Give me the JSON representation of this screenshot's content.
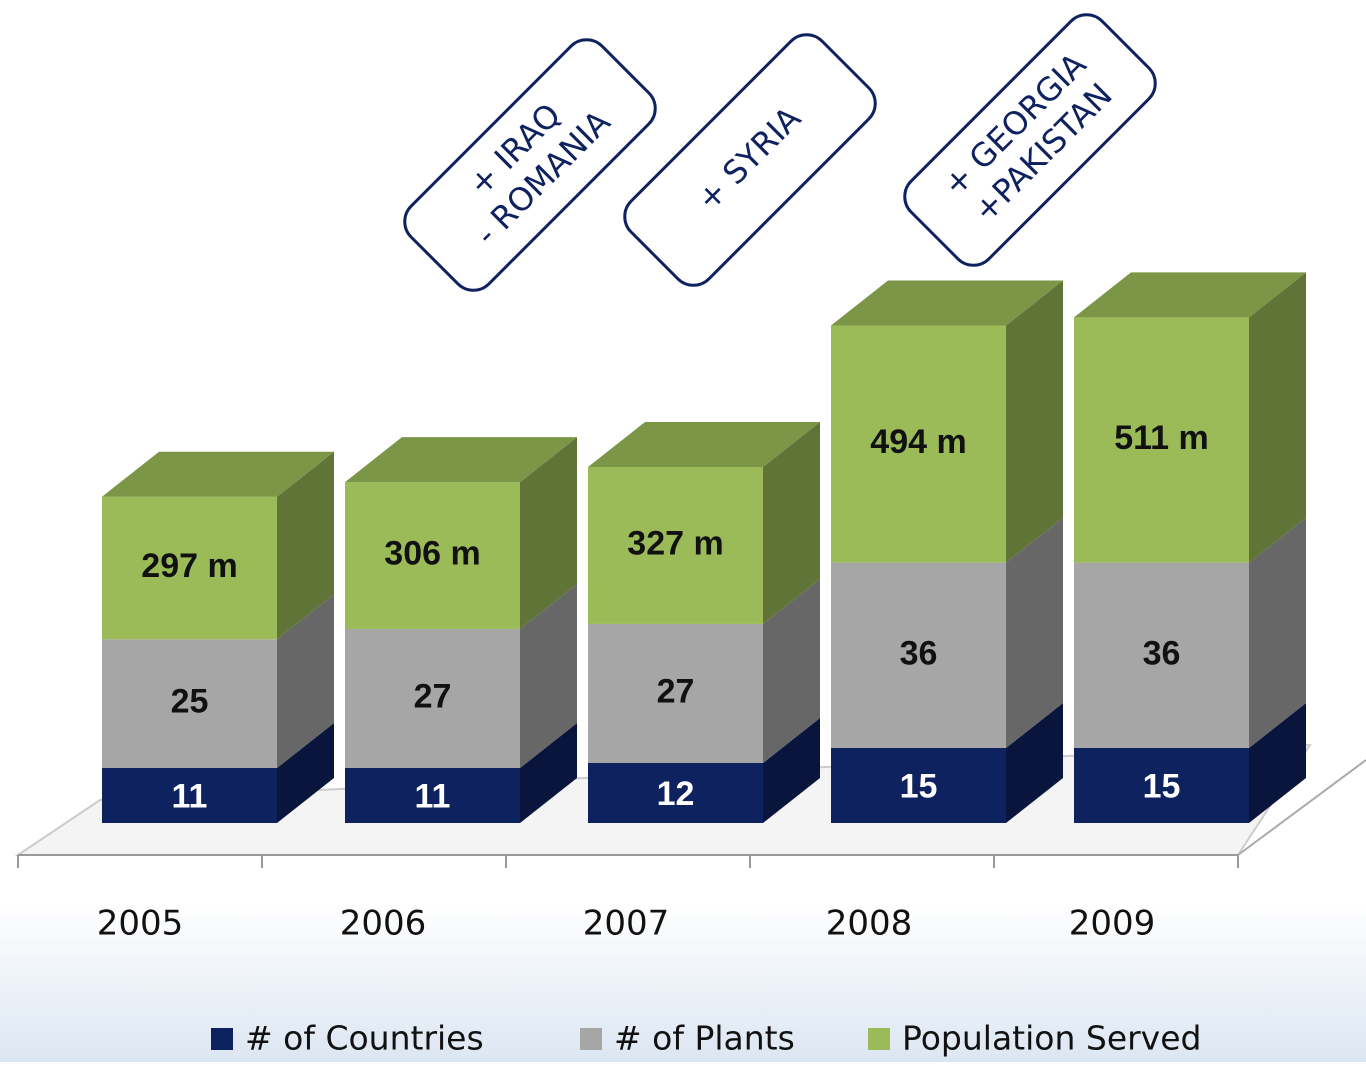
{
  "chart_data": {
    "type": "bar3d_stacked",
    "categories": [
      "2005",
      "2006",
      "2007",
      "2008",
      "2009"
    ],
    "series": [
      {
        "name": "# of Countries",
        "color": "#0f2260",
        "values": [
          11,
          11,
          12,
          15,
          15
        ]
      },
      {
        "name": "# of Plants",
        "color": "#a6a6a6",
        "values": [
          25,
          27,
          27,
          36,
          36
        ]
      },
      {
        "name": "Population Served",
        "color": "#9bbb59",
        "values": [
          297,
          306,
          327,
          494,
          511
        ],
        "value_labels": [
          "297 m",
          "306 m",
          "327 m",
          "494 m",
          "511 m"
        ]
      }
    ],
    "annotations": [
      {
        "lines": [
          "+ IRAQ",
          "- ROMANIA"
        ]
      },
      {
        "lines": [
          "+ SYRIA"
        ]
      },
      {
        "lines": [
          "+ GEORGIA",
          "+PAKISTAN"
        ]
      }
    ],
    "legend": "bottom"
  }
}
